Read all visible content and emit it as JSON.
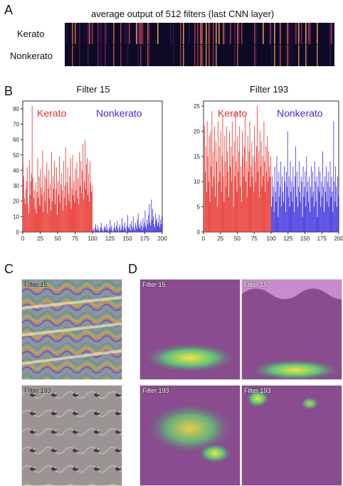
{
  "panels": {
    "a": "A",
    "b": "B",
    "c": "C",
    "d": "D"
  },
  "heatmap": {
    "title": "average output of 512 filters (last CNN layer)",
    "rows": [
      "Kerato",
      "Nonkerato"
    ]
  },
  "chart_data": [
    {
      "type": "bar",
      "title": "Filter 15",
      "ylim": [
        0,
        85
      ],
      "xlim": [
        0,
        200
      ],
      "yticks": [
        0,
        10,
        20,
        30,
        40,
        50,
        60,
        70,
        80
      ],
      "xticks": [
        0,
        25,
        50,
        75,
        100,
        125,
        150,
        175,
        200
      ],
      "legend": [
        {
          "name": "Kerato",
          "color": "#e8312b"
        },
        {
          "name": "Nonkerato",
          "color": "#3b2fe0"
        }
      ],
      "series": [
        {
          "name": "Kerato",
          "color": "#e8312b",
          "x_start": 0,
          "values": [
            44,
            36,
            22,
            18,
            28,
            33,
            42,
            18,
            12,
            47,
            24,
            33,
            38,
            82,
            35,
            22,
            27,
            15,
            32,
            12,
            26,
            48,
            22,
            36,
            17,
            41,
            29,
            24,
            53,
            13,
            26,
            37,
            20,
            35,
            45,
            12,
            28,
            40,
            22,
            31,
            14,
            52,
            20,
            36,
            28,
            46,
            18,
            28,
            42,
            11,
            33,
            24,
            49,
            19,
            31,
            38,
            27,
            14,
            46,
            22,
            30,
            55,
            17,
            32,
            42,
            25,
            20,
            36,
            48,
            15,
            28,
            50,
            24,
            33,
            19,
            41,
            27,
            45,
            22,
            35,
            18,
            52,
            30,
            46,
            25,
            40,
            57,
            21,
            33,
            60,
            28,
            44,
            48,
            24,
            38,
            20,
            46,
            32,
            26,
            30
          ]
        },
        {
          "name": "Nonkerato",
          "color": "#3b2fe0",
          "x_start": 100,
          "values": [
            1,
            2,
            0,
            3,
            5,
            2,
            1,
            4,
            2,
            0,
            1,
            3,
            6,
            2,
            1,
            0,
            2,
            4,
            3,
            1,
            5,
            2,
            0,
            1,
            3,
            8,
            2,
            4,
            1,
            0,
            2,
            6,
            3,
            1,
            4,
            7,
            2,
            0,
            3,
            5,
            1,
            2,
            9,
            4,
            1,
            3,
            6,
            2,
            0,
            4,
            11,
            3,
            2,
            5,
            1,
            7,
            4,
            2,
            10,
            3,
            1,
            6,
            4,
            2,
            8,
            12,
            3,
            5,
            2,
            7,
            4,
            1,
            9,
            3,
            6,
            14,
            4,
            2,
            8,
            5,
            11,
            18,
            6,
            4,
            21,
            8,
            15,
            10,
            5,
            3,
            12,
            7,
            9,
            4,
            6,
            11,
            3,
            8,
            5,
            10
          ]
        }
      ]
    },
    {
      "type": "bar",
      "title": "Filter 193",
      "ylim": [
        0,
        26
      ],
      "xlim": [
        0,
        200
      ],
      "yticks": [
        0,
        5,
        10,
        15,
        20,
        25
      ],
      "xticks": [
        0,
        25,
        50,
        75,
        100,
        125,
        150,
        175,
        200
      ],
      "legend": [
        {
          "name": "Kerato",
          "color": "#e8312b"
        },
        {
          "name": "Nonkerato",
          "color": "#3b2fe0"
        }
      ],
      "series": [
        {
          "name": "Kerato",
          "color": "#e8312b",
          "x_start": 0,
          "values": [
            4,
            21,
            12,
            17,
            8,
            22,
            15,
            10,
            19,
            6,
            20,
            13,
            24,
            9,
            16,
            11,
            21,
            7,
            18,
            14,
            5,
            22,
            10,
            17,
            12,
            20,
            8,
            15,
            23,
            11,
            6,
            19,
            14,
            9,
            21,
            16,
            12,
            7,
            20,
            13,
            17,
            10,
            22,
            15,
            5,
            18,
            11,
            24,
            14,
            8,
            19,
            12,
            16,
            21,
            9,
            13,
            6,
            20,
            15,
            11,
            17,
            23,
            10,
            14,
            7,
            19,
            12,
            16,
            22,
            9,
            13,
            18,
            11,
            15,
            8,
            21,
            14,
            10,
            17,
            25,
            12,
            16,
            7,
            20,
            13,
            18,
            9,
            15,
            11,
            22,
            14,
            8,
            17,
            12,
            19,
            10,
            16,
            13,
            11,
            15
          ]
        },
        {
          "name": "Nonkerato",
          "color": "#3b2fe0",
          "x_start": 100,
          "values": [
            5,
            11,
            7,
            9,
            4,
            13,
            8,
            6,
            15,
            10,
            3,
            12,
            7,
            9,
            14,
            5,
            11,
            8,
            6,
            13,
            10,
            4,
            12,
            9,
            20,
            7,
            11,
            5,
            14,
            8,
            10,
            6,
            13,
            9,
            4,
            11,
            17,
            7,
            12,
            5,
            9,
            14,
            8,
            6,
            11,
            10,
            3,
            13,
            7,
            9,
            12,
            5,
            15,
            8,
            10,
            6,
            11,
            4,
            9,
            13,
            7,
            12,
            8,
            5,
            14,
            10,
            6,
            11,
            3,
            9,
            13,
            8,
            12,
            5,
            10,
            7,
            16,
            9,
            4,
            11,
            8,
            13,
            6,
            10,
            12,
            5,
            9,
            14,
            7,
            11,
            8,
            4,
            22,
            10,
            6,
            13,
            9,
            5,
            11,
            7
          ]
        }
      ]
    }
  ],
  "panel_c": {
    "tiles": [
      "Filter 15",
      "Filter 193"
    ]
  },
  "panel_d": {
    "tiles": [
      "Filter 15",
      "Filter 15",
      "Filter 193",
      "Filter 193"
    ]
  }
}
